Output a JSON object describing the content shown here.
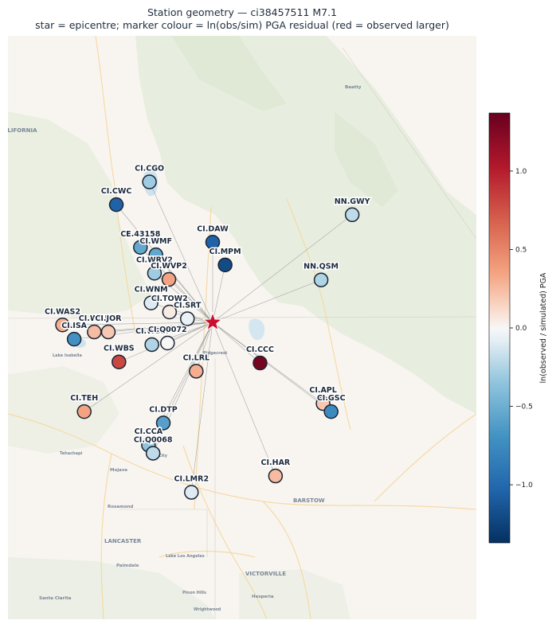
{
  "title_line1": "Station geometry — ci38457511  M7.1",
  "title_line2": "star = epicentre;  marker colour = ln(obs/sim) PGA residual (red = observed larger)",
  "colorbar_label": "ln(observed / simulated) PGA",
  "map_labels": [
    {
      "text": "ALIFORNIA",
      "name": "map-label-california"
    },
    {
      "text": "Beatty",
      "name": "map-label-beatty"
    },
    {
      "text": "BARSTOW",
      "name": "map-label-barstow"
    },
    {
      "text": "LANCASTER",
      "name": "map-label-lancaster"
    },
    {
      "text": "VICTORVILLE",
      "name": "map-label-victorville"
    },
    {
      "text": "Mojave",
      "name": "map-label-mojave"
    },
    {
      "text": "Rosamond",
      "name": "map-label-rosamond"
    },
    {
      "text": "Palmdale",
      "name": "map-label-palmdale"
    },
    {
      "text": "Lake Los Angeles",
      "name": "map-label-lake-los-angeles"
    },
    {
      "text": "Santa Clarita",
      "name": "map-label-santa-clarita"
    },
    {
      "text": "Hesperia",
      "name": "map-label-hesperia"
    },
    {
      "text": "Pinon Hills",
      "name": "map-label-pinon-hills"
    },
    {
      "text": "Wrightwood",
      "name": "map-label-wrightwood"
    },
    {
      "text": "Tehachapi",
      "name": "map-label-tehachapi"
    },
    {
      "text": "Lake Isabella",
      "name": "map-label-lake-isabella"
    },
    {
      "text": "City",
      "name": "map-label-city"
    },
    {
      "text": "Ridgecrest",
      "name": "map-label-ridgecrest"
    }
  ],
  "chart_data": {
    "type": "scatter",
    "title": "Station geometry — ci38457511  M7.1",
    "subtitle": "star = epicentre;  marker colour = ln(obs/sim) PGA residual (red = observed larger)",
    "colorbar": {
      "label": "ln(observed / simulated) PGA",
      "range": [
        -1.37,
        1.37
      ],
      "ticks": [
        -1.0,
        -0.5,
        0.0,
        0.5,
        1.0
      ],
      "colormap": "RdBu_r"
    },
    "epicentre": {
      "lon": -117.6,
      "lat": 35.77
    },
    "stations": [
      {
        "name": "CI.CGO",
        "lon": -117.915,
        "lat": 36.313,
        "residual": -0.3
      },
      {
        "name": "CI.CWC",
        "lon": -118.08,
        "lat": 36.225,
        "residual": -1.05
      },
      {
        "name": "CI.DAW",
        "lon": -117.6,
        "lat": 36.08,
        "residual": -1.05
      },
      {
        "name": "CE.43158",
        "lon": -117.96,
        "lat": 36.06,
        "residual": -0.55
      },
      {
        "name": "CI.WMF",
        "lon": -117.883,
        "lat": 36.031,
        "residual": -0.55
      },
      {
        "name": "CI.MPM",
        "lon": -117.538,
        "lat": 35.992,
        "residual": -1.2
      },
      {
        "name": "CI.WRV2",
        "lon": -117.89,
        "lat": 35.96,
        "residual": -0.3
      },
      {
        "name": "CI.WVP2",
        "lon": -117.818,
        "lat": 35.936,
        "residual": 0.35
      },
      {
        "name": "CI.WNM",
        "lon": -117.907,
        "lat": 35.845,
        "residual": -0.1
      },
      {
        "name": "CI.TOW2",
        "lon": -117.815,
        "lat": 35.81,
        "residual": 0.05
      },
      {
        "name": "CI.SRT",
        "lon": -117.726,
        "lat": 35.784,
        "residual": -0.05
      },
      {
        "name": "CI.WAS2",
        "lon": -118.348,
        "lat": 35.76,
        "residual": 0.3
      },
      {
        "name": "CI.WHF",
        "lon": -118.19,
        "lat": 35.733,
        "residual": 0.25
      },
      {
        "name": "CI.JOR",
        "lon": -118.12,
        "lat": 35.733,
        "residual": 0.2
      },
      {
        "name": "CI.ISA",
        "lon": -118.29,
        "lat": 35.705,
        "residual": -0.7
      },
      {
        "name": "CI.WBM",
        "lon": -117.903,
        "lat": 35.684,
        "residual": -0.25
      },
      {
        "name": "CI.Q0072",
        "lon": -117.825,
        "lat": 35.69,
        "residual": 0.0
      },
      {
        "name": "CI.WBS",
        "lon": -118.067,
        "lat": 35.617,
        "residual": 0.8
      },
      {
        "name": "CI.LRL",
        "lon": -117.682,
        "lat": 35.581,
        "residual": 0.3
      },
      {
        "name": "CI.CCC",
        "lon": -117.364,
        "lat": 35.613,
        "residual": 1.3
      },
      {
        "name": "CI.APL",
        "lon": -117.05,
        "lat": 35.456,
        "residual": 0.2
      },
      {
        "name": "CI.GSC",
        "lon": -117.01,
        "lat": 35.425,
        "residual": -0.75
      },
      {
        "name": "CI.TEH",
        "lon": -118.24,
        "lat": 35.425,
        "residual": 0.35
      },
      {
        "name": "CI.DTP",
        "lon": -117.846,
        "lat": 35.381,
        "residual": -0.6
      },
      {
        "name": "CI.CCA",
        "lon": -117.92,
        "lat": 35.296,
        "residual": -0.35
      },
      {
        "name": "CI.Q0068",
        "lon": -117.897,
        "lat": 35.264,
        "residual": -0.2
      },
      {
        "name": "CI.HAR",
        "lon": -117.287,
        "lat": 35.176,
        "residual": 0.25
      },
      {
        "name": "CI.LMR2",
        "lon": -117.706,
        "lat": 35.113,
        "residual": -0.1
      },
      {
        "name": "NN.GWY",
        "lon": -116.905,
        "lat": 36.186,
        "residual": -0.2
      },
      {
        "name": "NN.QSM",
        "lon": -117.06,
        "lat": 35.934,
        "residual": -0.25
      }
    ]
  }
}
